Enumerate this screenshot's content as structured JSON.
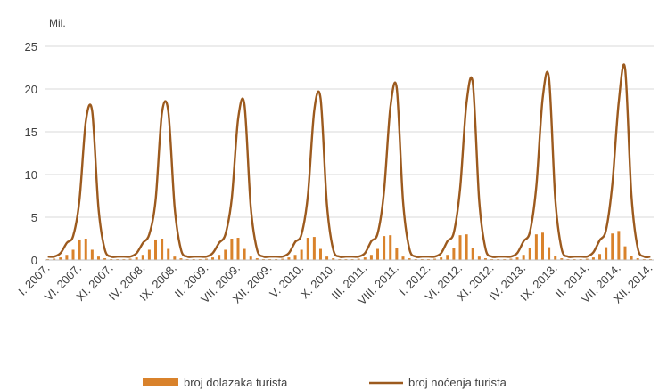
{
  "chart_data": {
    "type": "bar",
    "unit_label": "Mil.",
    "ylim": [
      0,
      25
    ],
    "yticks": [
      0,
      5,
      10,
      15,
      20,
      25
    ],
    "grid": true,
    "legend_position": "bottom",
    "colors": {
      "bar": "#D9822B",
      "line": "#9C5A1E",
      "grid": "#D9D9D9",
      "axis": "#BFBFBF",
      "text": "#404040"
    },
    "x_tick_labels": [
      "I. 2007.",
      "VI. 2007.",
      "XI. 2007.",
      "IV. 2008.",
      "IX. 2008.",
      "II. 2009.",
      "VII. 2009.",
      "XII. 2009.",
      "V. 2010.",
      "X. 2010.",
      "III. 2011.",
      "VIII. 2011.",
      "I. 2012.",
      "VI. 2012.",
      "XI. 2012.",
      "IV. 2013.",
      "IX. 2013.",
      "II. 2014.",
      "VII. 2014.",
      "XII. 2014."
    ],
    "months": [
      "I. 2007.",
      "II. 2007.",
      "III. 2007.",
      "IV. 2007.",
      "V. 2007.",
      "VI. 2007.",
      "VII. 2007.",
      "VIII. 2007.",
      "IX. 2007.",
      "X. 2007.",
      "XI. 2007.",
      "XII. 2007.",
      "I. 2008.",
      "II. 2008.",
      "III. 2008.",
      "IV. 2008.",
      "V. 2008.",
      "VI. 2008.",
      "VII. 2008.",
      "VIII. 2008.",
      "IX. 2008.",
      "X. 2008.",
      "XI. 2008.",
      "XII. 2008.",
      "I. 2009.",
      "II. 2009.",
      "III. 2009.",
      "IV. 2009.",
      "V. 2009.",
      "VI. 2009.",
      "VII. 2009.",
      "VIII. 2009.",
      "IX. 2009.",
      "X. 2009.",
      "XI. 2009.",
      "XII. 2009.",
      "I. 2010.",
      "II. 2010.",
      "III. 2010.",
      "IV. 2010.",
      "V. 2010.",
      "VI. 2010.",
      "VII. 2010.",
      "VIII. 2010.",
      "IX. 2010.",
      "X. 2010.",
      "XI. 2010.",
      "XII. 2010.",
      "I. 2011.",
      "II. 2011.",
      "III. 2011.",
      "IV. 2011.",
      "V. 2011.",
      "VI. 2011.",
      "VII. 2011.",
      "VIII. 2011.",
      "IX. 2011.",
      "X. 2011.",
      "XI. 2011.",
      "XII. 2011.",
      "I. 2012.",
      "II. 2012.",
      "III. 2012.",
      "IV. 2012.",
      "V. 2012.",
      "VI. 2012.",
      "VII. 2012.",
      "VIII. 2012.",
      "IX. 2012.",
      "X. 2012.",
      "XI. 2012.",
      "XII. 2012.",
      "I. 2013.",
      "II. 2013.",
      "III. 2013.",
      "IV. 2013.",
      "V. 2013.",
      "VI. 2013.",
      "VII. 2013.",
      "VIII. 2013.",
      "IX. 2013.",
      "X. 2013.",
      "XI. 2013.",
      "XII. 2013.",
      "I. 2014.",
      "II. 2014.",
      "III. 2014.",
      "IV. 2014.",
      "V. 2014.",
      "VI. 2014.",
      "VII. 2014.",
      "VIII. 2014.",
      "IX. 2014.",
      "X. 2014.",
      "XI. 2014.",
      "XII. 2014."
    ],
    "series": [
      {
        "name": "broj dolazaka turista",
        "type": "bar",
        "values": [
          0.1,
          0.15,
          0.3,
          0.6,
          1.2,
          2.4,
          2.5,
          1.2,
          0.4,
          0.2,
          0.1,
          0.1,
          0.1,
          0.15,
          0.3,
          0.6,
          1.2,
          2.4,
          2.5,
          1.3,
          0.4,
          0.2,
          0.1,
          0.1,
          0.1,
          0.15,
          0.3,
          0.6,
          1.2,
          2.5,
          2.6,
          1.3,
          0.4,
          0.2,
          0.1,
          0.1,
          0.1,
          0.15,
          0.3,
          0.6,
          1.2,
          2.6,
          2.7,
          1.3,
          0.4,
          0.2,
          0.1,
          0.1,
          0.1,
          0.15,
          0.3,
          0.6,
          1.3,
          2.8,
          2.9,
          1.4,
          0.4,
          0.2,
          0.1,
          0.1,
          0.1,
          0.15,
          0.3,
          0.6,
          1.4,
          2.9,
          3.0,
          1.4,
          0.4,
          0.2,
          0.1,
          0.1,
          0.1,
          0.15,
          0.3,
          0.6,
          1.4,
          3.0,
          3.2,
          1.5,
          0.5,
          0.2,
          0.1,
          0.1,
          0.1,
          0.15,
          0.3,
          0.7,
          1.5,
          3.1,
          3.4,
          1.6,
          0.5,
          0.2,
          0.1,
          0.1
        ]
      },
      {
        "name": "broj noćenja turista",
        "type": "line",
        "values": [
          0.4,
          0.4,
          0.8,
          2.0,
          2.8,
          7.0,
          16.2,
          17.4,
          6.0,
          1.2,
          0.4,
          0.4,
          0.4,
          0.4,
          0.8,
          2.0,
          3.0,
          7.0,
          17.2,
          17.4,
          6.2,
          1.2,
          0.4,
          0.4,
          0.4,
          0.4,
          0.8,
          2.0,
          3.0,
          7.2,
          16.5,
          18.2,
          6.2,
          1.2,
          0.4,
          0.4,
          0.4,
          0.4,
          0.8,
          2.1,
          3.0,
          7.6,
          17.5,
          18.9,
          6.5,
          1.2,
          0.4,
          0.4,
          0.4,
          0.4,
          0.8,
          2.2,
          3.1,
          8.0,
          17.8,
          20.1,
          6.8,
          1.3,
          0.4,
          0.4,
          0.4,
          0.4,
          0.8,
          2.2,
          3.2,
          8.4,
          18.3,
          20.7,
          7.0,
          1.3,
          0.4,
          0.4,
          0.4,
          0.4,
          0.8,
          2.2,
          3.3,
          8.6,
          18.9,
          21.3,
          7.1,
          1.3,
          0.4,
          0.4,
          0.4,
          0.4,
          0.9,
          2.3,
          3.5,
          9.0,
          18.5,
          22.4,
          7.6,
          1.4,
          0.4,
          0.4
        ]
      }
    ]
  }
}
